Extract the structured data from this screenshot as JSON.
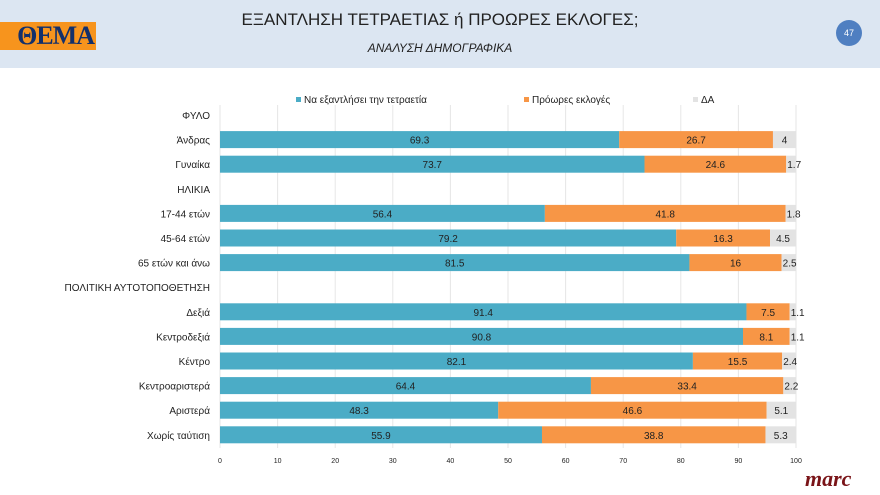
{
  "header": {
    "title": "ΕΞΑΝΤΛΗΣΗ ΤΕΤΡΑΕΤΙΑΣ ή ΠΡΟΩΡΕΣ ΕΚΛΟΓΕΣ;",
    "subtitle": "ΑΝΑΛΥΣΗ ΔΗΜΟΓΡΑΦΙΚΑ",
    "page_number": "47",
    "logo": "ΘΕΜΑ"
  },
  "footer": {
    "brand": "marc"
  },
  "chart_data": {
    "type": "bar",
    "orientation": "horizontal",
    "stacked": true,
    "xlim": [
      0,
      100
    ],
    "xticks": [
      0,
      10,
      20,
      30,
      40,
      50,
      60,
      70,
      80,
      90,
      100
    ],
    "legend_position": "top",
    "grid": true,
    "categories": [
      "ΦΥΛΟ",
      "Άνδρας",
      "Γυναίκα",
      "ΗΛΙΚΙΑ",
      "17-44 ετών",
      "45-64 ετών",
      "65 ετών και άνω",
      "ΠΟΛΙΤΙΚΗ ΑΥΤΟΤΟΠΟΘΕΤΗΣΗ",
      "Δεξιά",
      "Κεντροδεξιά",
      "Κέντρο",
      "Κεντροαριστερά",
      "Αριστερά",
      "Χωρίς ταύτιση"
    ],
    "series": [
      {
        "name": "Να εξαντλήσει την τετραετία",
        "color": "#4bacc6",
        "values": [
          null,
          69.3,
          73.7,
          null,
          56.4,
          79.2,
          81.5,
          null,
          91.4,
          90.8,
          82.1,
          64.4,
          48.3,
          55.9
        ]
      },
      {
        "name": "Πρόωρες εκλογές",
        "color": "#f79646",
        "values": [
          null,
          26.7,
          24.6,
          null,
          41.8,
          16.3,
          16,
          null,
          7.5,
          8.1,
          15.5,
          33.4,
          46.6,
          38.8
        ]
      },
      {
        "name": "ΔΑ",
        "color": "#e3e3e3",
        "values": [
          null,
          4,
          1.7,
          null,
          1.8,
          4.5,
          2.5,
          null,
          1.1,
          1.1,
          2.4,
          2.2,
          5.1,
          5.3
        ]
      }
    ]
  }
}
